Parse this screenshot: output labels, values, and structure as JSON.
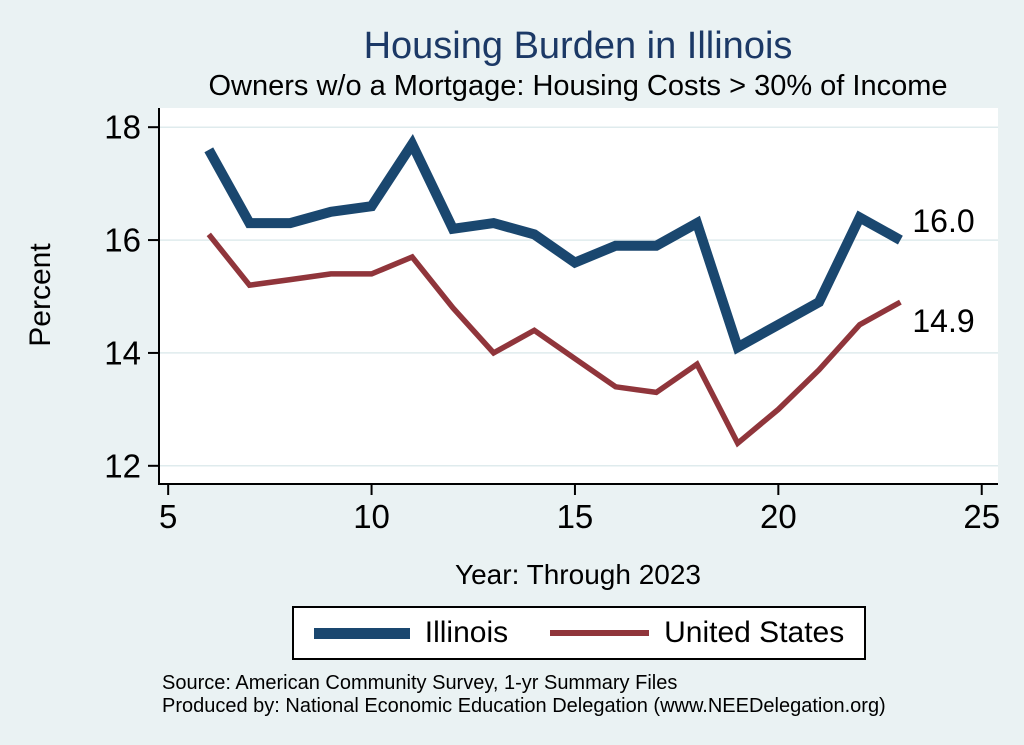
{
  "header": {
    "title": "Housing Burden in Illinois",
    "subtitle": "Owners w/o a Mortgage: Housing Costs > 30% of Income"
  },
  "colors": {
    "background": "#eaf2f3",
    "plot_background": "#ffffff",
    "gridline": "#dfebed",
    "axis": "#000000",
    "title_text": "#1c3966",
    "illinois_line": "#1a476f",
    "united_states_line": "#90353b"
  },
  "chart_data": {
    "type": "line",
    "title": "Housing Burden in Illinois",
    "subtitle": "Owners w/o a Mortgage: Housing Costs > 30% of Income",
    "xlabel": "Year: Through 2023",
    "ylabel": "Percent",
    "x": [
      6,
      7,
      8,
      9,
      10,
      11,
      12,
      13,
      14,
      15,
      16,
      17,
      18,
      19,
      20,
      21,
      22,
      23
    ],
    "x_meaning": "Year: 6 = 2006 through 23 = 2023",
    "series": [
      {
        "name": "Illinois",
        "color": "#1a476f",
        "stroke_width": 10,
        "values": [
          17.6,
          16.3,
          16.3,
          16.5,
          16.6,
          17.7,
          16.2,
          16.3,
          16.1,
          15.6,
          15.9,
          15.9,
          16.3,
          14.1,
          14.5,
          14.9,
          16.4,
          16.0
        ],
        "end_label": "16.0",
        "label_position": "above-right"
      },
      {
        "name": "United States",
        "color": "#90353b",
        "stroke_width": 5.5,
        "values": [
          16.1,
          15.2,
          15.3,
          15.4,
          15.4,
          15.7,
          14.8,
          14.0,
          14.4,
          13.9,
          13.4,
          13.3,
          13.8,
          12.4,
          13.0,
          13.7,
          14.5,
          14.9
        ],
        "end_label": "14.9",
        "label_position": "below-right"
      }
    ],
    "xticks": [
      5,
      10,
      15,
      20,
      25
    ],
    "yticks": [
      12,
      14,
      16,
      18
    ],
    "xlim": [
      4.75,
      25.4
    ],
    "ylim": [
      11.66,
      18.34
    ],
    "grid": "horizontal",
    "legend_position": "bottom"
  },
  "footer": {
    "line1": "Source: American Community Survey, 1-yr Summary Files",
    "line2": "Produced by: National Economic Education Delegation (www.NEEDelegation.org)"
  }
}
